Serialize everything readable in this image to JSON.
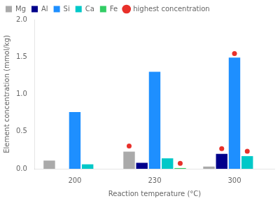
{
  "chart_data": {
    "type": "bar",
    "xlabel": "Reaction temperature (°C)",
    "ylabel": "Element concentration (mmol/kg)",
    "categories": [
      200,
      230,
      300
    ],
    "series": [
      {
        "name": "Mg",
        "color": "#aaaaaa",
        "values": [
          0.11,
          0.23,
          0.03
        ]
      },
      {
        "name": "Al",
        "color": "#00008b",
        "values": [
          0.0,
          0.08,
          0.2
        ]
      },
      {
        "name": "Si",
        "color": "#1e8fff",
        "values": [
          0.76,
          1.3,
          1.49
        ]
      },
      {
        "name": "Ca",
        "color": "#00c8c8",
        "values": [
          0.06,
          0.14,
          0.17
        ]
      },
      {
        "name": "Fe",
        "color": "#32cd64",
        "values": [
          0.0,
          0.01,
          0.0
        ]
      }
    ],
    "highlights": {
      "name": "highest concentration",
      "color": "#e8302a",
      "marker": "circle",
      "points": [
        {
          "series": "Mg",
          "category": 230,
          "value": 0.305
        },
        {
          "series": "Fe",
          "category": 230,
          "value": 0.073
        },
        {
          "series": "Al",
          "category": 300,
          "value": 0.27
        },
        {
          "series": "Ca",
          "category": 300,
          "value": 0.235
        },
        {
          "series": "Si",
          "category": 300,
          "value": 1.545
        }
      ]
    },
    "ylim": [
      0.0,
      2.0
    ],
    "yticks": [
      {
        "value": 0.0,
        "label": "0.0"
      },
      {
        "value": 0.5,
        "label": "0.5"
      },
      {
        "value": 1.0,
        "label": "1.0"
      },
      {
        "value": 1.5,
        "label": "1.5"
      },
      {
        "value": 2.0,
        "label": "2.0"
      }
    ],
    "grid": false,
    "legend": "upper left"
  }
}
